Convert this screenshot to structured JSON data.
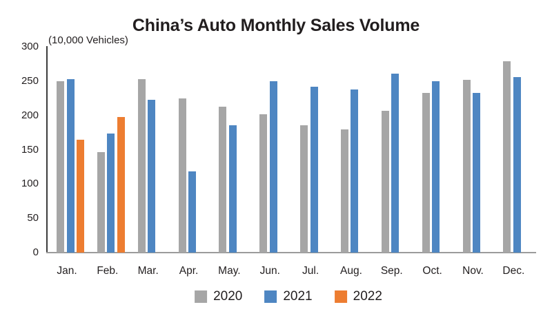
{
  "chart_data": {
    "type": "bar",
    "title": "China’s Auto Monthly Sales Volume",
    "unit": "(10,000 Vehicles)",
    "categories": [
      "Jan.",
      "Feb.",
      "Mar.",
      "Apr.",
      "May.",
      "Jun.",
      "Jul.",
      "Aug.",
      "Sep.",
      "Oct.",
      "Nov.",
      "Dec."
    ],
    "series": [
      {
        "name": "2020",
        "color": "#a6a6a6",
        "values": [
          250,
          146,
          253,
          225,
          213,
          202,
          186,
          180,
          207,
          233,
          252,
          279
        ]
      },
      {
        "name": "2021",
        "color": "#4e86c2",
        "values": [
          253,
          174,
          223,
          118,
          186,
          250,
          242,
          238,
          261,
          250,
          233,
          256
        ]
      },
      {
        "name": "2022",
        "color": "#ed7d31",
        "values": [
          165,
          198,
          null,
          null,
          null,
          null,
          null,
          null,
          null,
          null,
          null,
          null
        ]
      }
    ],
    "ylim": [
      0,
      300
    ],
    "yticks": [
      0,
      50,
      100,
      150,
      200,
      250,
      300
    ],
    "grid": false,
    "legend_position": "bottom"
  }
}
